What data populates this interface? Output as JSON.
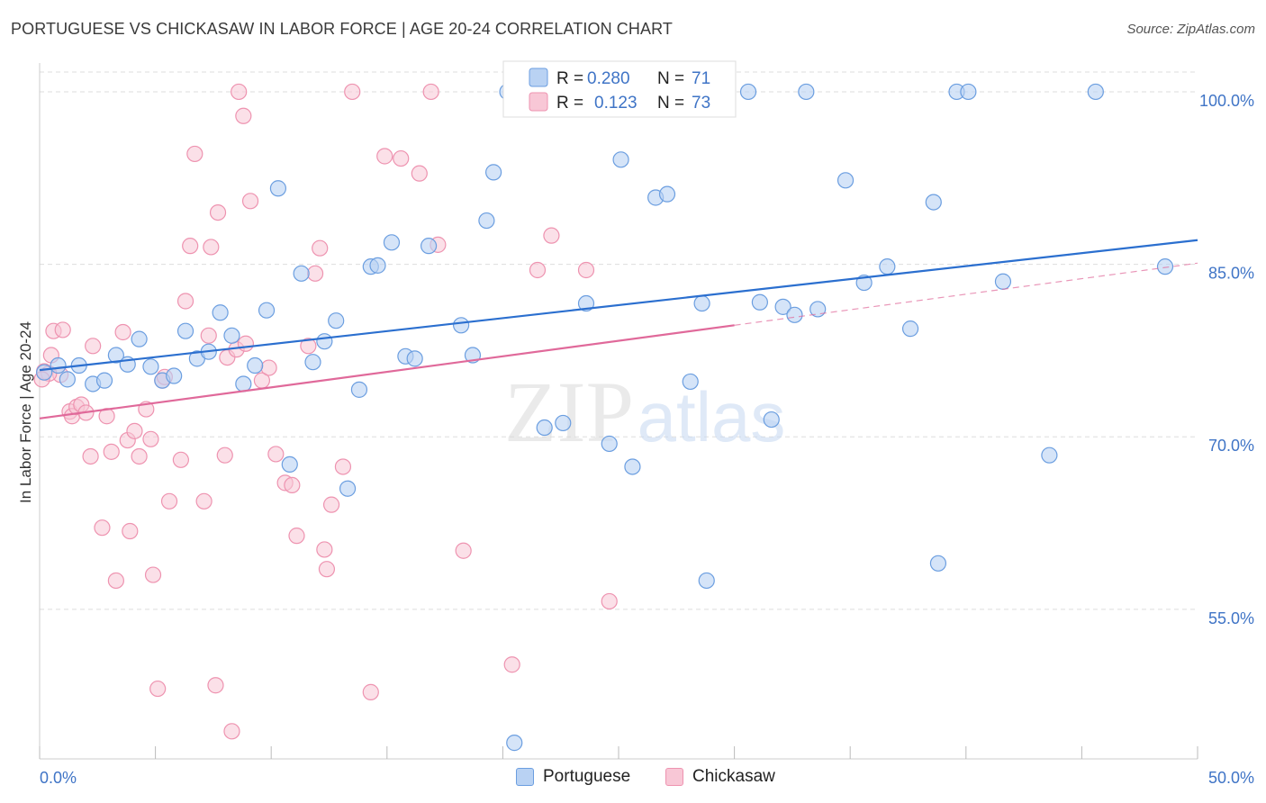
{
  "title": "PORTUGUESE VS CHICKASAW IN LABOR FORCE | AGE 20-24 CORRELATION CHART",
  "source": "Source: ZipAtlas.com",
  "watermark": {
    "zip": "ZIP",
    "atlas": "atlas"
  },
  "colors": {
    "blue_fill": "#b9d2f3",
    "blue_stroke": "#6b9ee0",
    "blue_line": "#2b6fcf",
    "pink_fill": "#f8c7d6",
    "pink_stroke": "#ee93b0",
    "pink_line": "#e0699a",
    "tick_text": "#3f74c6",
    "grid": "#dddddd"
  },
  "legend": {
    "r_label": "R =",
    "n_label": "N =",
    "series": [
      {
        "name": "Portuguese",
        "r": "0.280",
        "n": "71"
      },
      {
        "name": "Chickasaw",
        "r": "0.123",
        "n": "73"
      }
    ]
  },
  "chart_data": {
    "type": "scatter",
    "title": "PORTUGUESE VS CHICKASAW IN LABOR FORCE | AGE 20-24 CORRELATION CHART",
    "xlabel": "",
    "ylabel": "In Labor Force | Age 20-24",
    "xlim": [
      0,
      50
    ],
    "ylim": [
      42,
      102.5
    ],
    "x_tick_labels": [
      "0.0%",
      "50.0%"
    ],
    "y_ticks": [
      55,
      70,
      85,
      100
    ],
    "y_tick_labels": [
      "55.0%",
      "70.0%",
      "85.0%",
      "100.0%"
    ],
    "series": [
      {
        "name": "Portuguese",
        "r": 0.28,
        "n": 71,
        "trend": {
          "x0": 0,
          "y0": 75.8,
          "x1": 50,
          "y1": 87.1
        },
        "points": [
          [
            0.2,
            75.6
          ],
          [
            0.8,
            76.2
          ],
          [
            1.2,
            75.0
          ],
          [
            1.7,
            76.2
          ],
          [
            2.3,
            74.6
          ],
          [
            2.8,
            74.9
          ],
          [
            3.3,
            77.1
          ],
          [
            3.8,
            76.3
          ],
          [
            4.3,
            78.5
          ],
          [
            4.8,
            76.1
          ],
          [
            5.3,
            74.9
          ],
          [
            5.8,
            75.3
          ],
          [
            6.3,
            79.2
          ],
          [
            6.8,
            76.8
          ],
          [
            7.3,
            77.4
          ],
          [
            7.8,
            80.8
          ],
          [
            8.3,
            78.8
          ],
          [
            8.8,
            74.6
          ],
          [
            9.3,
            76.2
          ],
          [
            9.8,
            81.0
          ],
          [
            10.3,
            91.6
          ],
          [
            10.8,
            67.6
          ],
          [
            11.3,
            84.2
          ],
          [
            11.8,
            76.5
          ],
          [
            12.3,
            78.3
          ],
          [
            12.8,
            80.1
          ],
          [
            13.3,
            65.5
          ],
          [
            13.8,
            74.1
          ],
          [
            14.3,
            84.8
          ],
          [
            14.6,
            84.9
          ],
          [
            15.2,
            86.9
          ],
          [
            15.8,
            77.0
          ],
          [
            16.2,
            76.8
          ],
          [
            16.8,
            86.6
          ],
          [
            18.2,
            79.7
          ],
          [
            18.7,
            77.1
          ],
          [
            19.3,
            88.8
          ],
          [
            19.6,
            93.0
          ],
          [
            20.2,
            100.0
          ],
          [
            20.5,
            43.4
          ],
          [
            21.1,
            100.0
          ],
          [
            21.8,
            70.8
          ],
          [
            22.6,
            71.2
          ],
          [
            23.6,
            81.6
          ],
          [
            24.6,
            69.4
          ],
          [
            25.1,
            94.1
          ],
          [
            25.6,
            67.4
          ],
          [
            26.6,
            90.8
          ],
          [
            27.1,
            91.1
          ],
          [
            28.1,
            74.8
          ],
          [
            28.6,
            81.6
          ],
          [
            28.8,
            57.5
          ],
          [
            30.6,
            100.0
          ],
          [
            31.1,
            81.7
          ],
          [
            31.6,
            71.5
          ],
          [
            32.1,
            81.3
          ],
          [
            32.6,
            80.6
          ],
          [
            33.1,
            100.0
          ],
          [
            33.6,
            81.1
          ],
          [
            34.8,
            92.3
          ],
          [
            35.6,
            83.4
          ],
          [
            36.6,
            84.8
          ],
          [
            37.6,
            79.4
          ],
          [
            38.6,
            90.4
          ],
          [
            38.8,
            59.0
          ],
          [
            39.6,
            100.0
          ],
          [
            40.1,
            100.0
          ],
          [
            41.6,
            83.5
          ],
          [
            43.6,
            68.4
          ],
          [
            45.6,
            100.0
          ],
          [
            48.6,
            84.8
          ]
        ]
      },
      {
        "name": "Chickasaw",
        "r": 0.123,
        "n": 73,
        "trend_solid": {
          "x0": 0,
          "y0": 71.6,
          "x1": 30,
          "y1": 79.7
        },
        "trend_dashed": {
          "x0": 30,
          "y0": 79.7,
          "x1": 50,
          "y1": 85.1
        },
        "points": [
          [
            0.2,
            75.7
          ],
          [
            0.5,
            77.1
          ],
          [
            0.6,
            79.2
          ],
          [
            0.9,
            75.4
          ],
          [
            1.0,
            79.3
          ],
          [
            1.3,
            72.2
          ],
          [
            1.4,
            71.8
          ],
          [
            1.6,
            72.6
          ],
          [
            1.8,
            72.8
          ],
          [
            2.0,
            72.1
          ],
          [
            2.2,
            68.3
          ],
          [
            2.3,
            77.9
          ],
          [
            2.7,
            62.1
          ],
          [
            2.9,
            71.8
          ],
          [
            3.1,
            68.7
          ],
          [
            3.3,
            57.5
          ],
          [
            3.6,
            79.1
          ],
          [
            3.8,
            69.7
          ],
          [
            3.9,
            61.8
          ],
          [
            4.1,
            70.5
          ],
          [
            4.3,
            68.3
          ],
          [
            4.6,
            72.4
          ],
          [
            4.8,
            69.8
          ],
          [
            4.9,
            58.0
          ],
          [
            5.1,
            48.1
          ],
          [
            5.3,
            74.9
          ],
          [
            5.4,
            75.2
          ],
          [
            5.6,
            64.4
          ],
          [
            6.1,
            68.0
          ],
          [
            6.3,
            81.8
          ],
          [
            6.5,
            86.6
          ],
          [
            6.7,
            94.6
          ],
          [
            7.1,
            64.4
          ],
          [
            7.3,
            78.8
          ],
          [
            7.4,
            86.5
          ],
          [
            7.6,
            48.4
          ],
          [
            7.7,
            89.5
          ],
          [
            8.0,
            68.4
          ],
          [
            8.1,
            76.9
          ],
          [
            8.3,
            44.4
          ],
          [
            8.5,
            77.6
          ],
          [
            8.6,
            100.0
          ],
          [
            8.8,
            97.9
          ],
          [
            8.9,
            78.1
          ],
          [
            9.1,
            90.5
          ],
          [
            9.6,
            74.9
          ],
          [
            9.9,
            76.0
          ],
          [
            10.2,
            68.5
          ],
          [
            10.6,
            66.0
          ],
          [
            10.9,
            65.8
          ],
          [
            11.1,
            61.4
          ],
          [
            11.6,
            77.9
          ],
          [
            11.9,
            84.2
          ],
          [
            12.1,
            86.4
          ],
          [
            12.3,
            60.2
          ],
          [
            12.4,
            58.5
          ],
          [
            12.6,
            64.1
          ],
          [
            13.1,
            67.4
          ],
          [
            13.5,
            100.0
          ],
          [
            14.3,
            47.8
          ],
          [
            14.9,
            94.4
          ],
          [
            15.6,
            94.2
          ],
          [
            16.4,
            92.9
          ],
          [
            16.9,
            100.0
          ],
          [
            17.2,
            86.7
          ],
          [
            18.3,
            60.1
          ],
          [
            20.4,
            50.2
          ],
          [
            21.5,
            84.5
          ],
          [
            22.1,
            87.5
          ],
          [
            23.6,
            84.5
          ],
          [
            24.6,
            55.7
          ],
          [
            0.4,
            75.5
          ],
          [
            0.1,
            75.0
          ]
        ]
      }
    ]
  }
}
